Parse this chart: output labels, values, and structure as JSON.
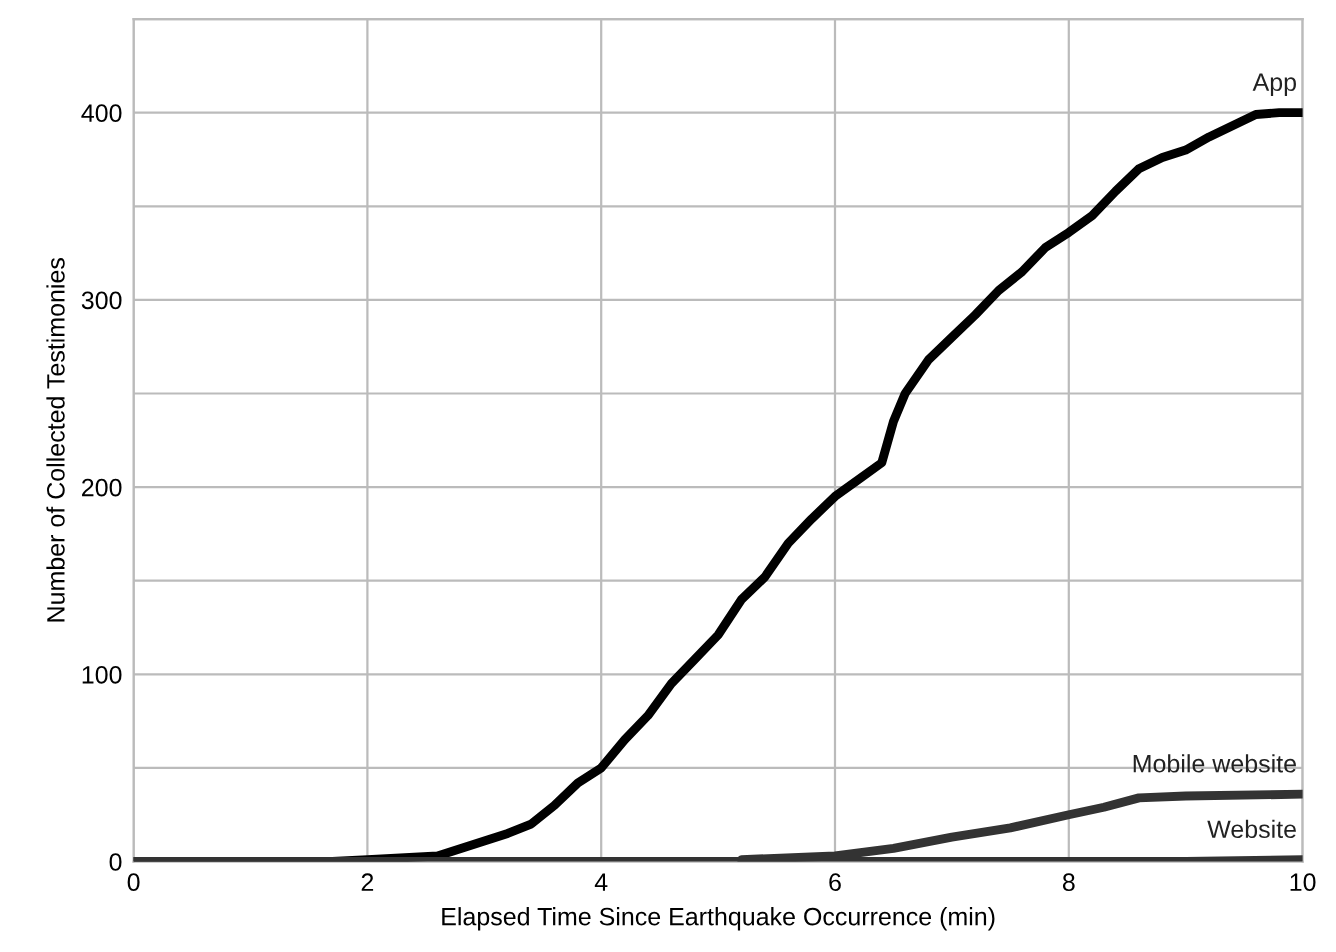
{
  "chart_data": {
    "type": "line",
    "xlabel": "Elapsed Time Since Earthquake Occurrence (min)",
    "ylabel": "Number of Collected Testimonies",
    "xlim": [
      0,
      10
    ],
    "xticks": [
      0,
      2,
      4,
      6,
      8,
      10
    ],
    "ylim": [
      0,
      450
    ],
    "yticks": [
      0,
      {
        "value": 50,
        "label": null
      },
      100,
      {
        "value": 150,
        "label": null
      },
      200,
      {
        "value": 250,
        "label": null
      },
      300,
      {
        "value": 350,
        "label": null
      },
      400,
      {
        "value": 450,
        "label": null
      }
    ],
    "grid": true,
    "marker": "none",
    "line_style": "solid",
    "series": [
      {
        "name": "App",
        "color": "#000000",
        "x": [
          0,
          1.7,
          2.0,
          2.6,
          2.8,
          3.0,
          3.2,
          3.4,
          3.6,
          3.8,
          4.0,
          4.2,
          4.4,
          4.6,
          4.8,
          5.0,
          5.2,
          5.4,
          5.6,
          5.8,
          6.0,
          6.2,
          6.4,
          6.5,
          6.6,
          6.8,
          7.0,
          7.2,
          7.4,
          7.6,
          7.8,
          8.0,
          8.2,
          8.4,
          8.6,
          8.8,
          9.0,
          9.2,
          9.4,
          9.6,
          9.8,
          10
        ],
        "values": [
          0,
          0,
          1,
          3,
          7,
          11,
          15,
          20,
          30,
          42,
          50,
          65,
          78,
          95,
          108,
          121,
          140,
          152,
          170,
          183,
          195,
          204,
          213,
          235,
          250,
          268,
          280,
          292,
          305,
          315,
          328,
          336,
          345,
          358,
          370,
          376,
          380,
          387,
          393,
          399,
          400,
          400
        ]
      },
      {
        "name": "Mobile website",
        "color": "#333333",
        "x": [
          5.2,
          6.0,
          6.5,
          7.0,
          7.5,
          8.0,
          8.3,
          8.6,
          9.0,
          10
        ],
        "values": [
          1,
          3,
          7,
          13,
          18,
          25,
          29,
          34,
          35,
          36
        ]
      },
      {
        "name": "Website",
        "color": "#333333",
        "x": [
          0,
          9.0,
          10
        ],
        "values": [
          0,
          0,
          1
        ]
      }
    ]
  }
}
